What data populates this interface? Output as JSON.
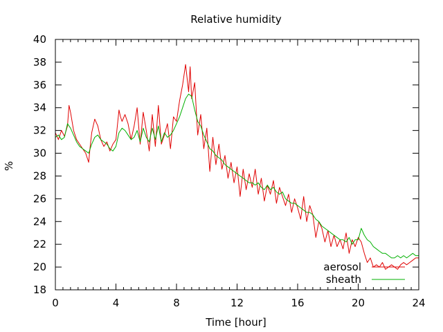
{
  "chart_data": {
    "type": "line",
    "title": "Relative humidity",
    "xlabel": "Time [hour]",
    "ylabel": "%",
    "xlim": [
      0,
      24
    ],
    "ylim": [
      18,
      40
    ],
    "xticks": [
      0,
      4,
      8,
      12,
      16,
      20,
      24
    ],
    "yticks": [
      18,
      20,
      22,
      24,
      26,
      28,
      30,
      32,
      34,
      36,
      38,
      40
    ],
    "xticks_minor_step": 0.5,
    "legend_position": "bottom-right",
    "grid": false,
    "series": [
      {
        "name": "aerosol",
        "color": "#e00000",
        "x": [
          0,
          0.2,
          0.4,
          0.6,
          0.8,
          0.9,
          1.0,
          1.2,
          1.4,
          1.6,
          1.8,
          2.0,
          2.2,
          2.3,
          2.4,
          2.6,
          2.8,
          3.0,
          3.2,
          3.4,
          3.6,
          3.8,
          4.0,
          4.2,
          4.3,
          4.4,
          4.6,
          4.8,
          5.0,
          5.2,
          5.4,
          5.6,
          5.8,
          6.0,
          6.2,
          6.4,
          6.6,
          6.8,
          7.0,
          7.2,
          7.4,
          7.6,
          7.8,
          8.0,
          8.2,
          8.4,
          8.6,
          8.8,
          8.9,
          9.0,
          9.2,
          9.4,
          9.6,
          9.8,
          10.0,
          10.2,
          10.4,
          10.6,
          10.8,
          11.0,
          11.2,
          11.4,
          11.6,
          11.8,
          12.0,
          12.2,
          12.4,
          12.6,
          12.8,
          13.0,
          13.2,
          13.4,
          13.6,
          13.8,
          14.0,
          14.2,
          14.4,
          14.6,
          14.8,
          15.0,
          15.2,
          15.4,
          15.6,
          15.8,
          16.0,
          16.2,
          16.4,
          16.6,
          16.8,
          17.0,
          17.2,
          17.4,
          17.6,
          17.8,
          18.0,
          18.2,
          18.4,
          18.6,
          18.8,
          19.0,
          19.2,
          19.4,
          19.6,
          19.8,
          20.0,
          20.2,
          20.4,
          20.6,
          20.8,
          21.0,
          21.2,
          21.4,
          21.6,
          21.8,
          22.0,
          22.2,
          22.4,
          22.6,
          22.8,
          23.0,
          23.2,
          23.4,
          23.6,
          23.8,
          24.0
        ],
        "y": [
          31.8,
          31.2,
          32.0,
          31.5,
          32.4,
          34.2,
          33.6,
          32.0,
          31.2,
          30.8,
          30.4,
          30.0,
          29.2,
          30.6,
          31.8,
          33.0,
          32.4,
          31.2,
          30.6,
          31.0,
          30.2,
          30.8,
          31.2,
          33.8,
          33.2,
          32.8,
          33.4,
          32.6,
          31.2,
          32.4,
          34.0,
          30.8,
          33.6,
          32.0,
          30.2,
          33.4,
          30.6,
          34.2,
          30.8,
          31.6,
          32.6,
          30.4,
          33.2,
          32.8,
          34.6,
          36.0,
          37.8,
          35.4,
          37.6,
          34.8,
          36.2,
          31.6,
          33.4,
          30.4,
          32.2,
          28.4,
          31.4,
          29.0,
          30.8,
          28.6,
          29.8,
          27.8,
          29.2,
          27.4,
          28.8,
          26.2,
          28.6,
          26.8,
          28.2,
          27.0,
          28.6,
          26.4,
          27.8,
          25.8,
          27.2,
          26.4,
          27.6,
          25.6,
          27.0,
          26.2,
          25.4,
          26.4,
          24.8,
          26.0,
          25.2,
          24.2,
          26.2,
          24.0,
          25.4,
          24.6,
          22.6,
          24.0,
          23.4,
          22.2,
          23.2,
          21.8,
          22.8,
          21.8,
          22.4,
          21.6,
          23.0,
          21.2,
          22.4,
          21.8,
          22.6,
          22.2,
          21.2,
          20.4,
          20.8,
          20.0,
          20.2,
          20.0,
          20.4,
          19.8,
          20.0,
          20.2,
          20.0,
          19.8,
          20.2,
          20.4,
          20.2,
          20.4,
          20.6,
          20.8,
          20.8
        ]
      },
      {
        "name": "sheath",
        "color": "#00b000",
        "x": [
          0,
          0.2,
          0.4,
          0.6,
          0.8,
          1.0,
          1.2,
          1.4,
          1.6,
          1.8,
          2.0,
          2.2,
          2.4,
          2.6,
          2.8,
          3.0,
          3.2,
          3.4,
          3.6,
          3.8,
          4.0,
          4.2,
          4.4,
          4.6,
          4.8,
          5.0,
          5.2,
          5.4,
          5.6,
          5.8,
          6.0,
          6.2,
          6.4,
          6.6,
          6.8,
          7.0,
          7.2,
          7.4,
          7.6,
          7.8,
          8.0,
          8.2,
          8.4,
          8.6,
          8.8,
          9.0,
          9.2,
          9.4,
          9.6,
          9.8,
          10.0,
          10.2,
          10.4,
          10.6,
          10.8,
          11.0,
          11.2,
          11.4,
          11.6,
          11.8,
          12.0,
          12.2,
          12.4,
          12.6,
          12.8,
          13.0,
          13.2,
          13.4,
          13.6,
          13.8,
          14.0,
          14.2,
          14.4,
          14.6,
          14.8,
          15.0,
          15.2,
          15.4,
          15.6,
          15.8,
          16.0,
          16.2,
          16.4,
          16.6,
          16.8,
          17.0,
          17.2,
          17.4,
          17.6,
          17.8,
          18.0,
          18.2,
          18.4,
          18.6,
          18.8,
          19.0,
          19.2,
          19.4,
          19.6,
          19.8,
          20.0,
          20.2,
          20.4,
          20.6,
          20.8,
          21.0,
          21.2,
          21.4,
          21.6,
          21.8,
          22.0,
          22.2,
          22.4,
          22.6,
          22.8,
          23.0,
          23.2,
          23.4,
          23.6,
          23.8,
          24.0
        ],
        "y": [
          31.4,
          31.6,
          31.2,
          31.4,
          32.6,
          32.2,
          31.6,
          31.0,
          30.6,
          30.4,
          30.2,
          30.0,
          30.8,
          31.4,
          31.6,
          31.2,
          31.0,
          30.8,
          30.4,
          30.2,
          30.6,
          31.8,
          32.2,
          32.0,
          31.6,
          31.2,
          31.4,
          32.0,
          31.0,
          32.2,
          31.4,
          31.0,
          32.2,
          31.2,
          32.4,
          31.0,
          31.8,
          31.4,
          31.6,
          32.0,
          32.6,
          33.2,
          34.0,
          34.8,
          35.2,
          35.0,
          33.8,
          32.8,
          32.4,
          31.6,
          31.0,
          30.4,
          30.2,
          29.8,
          29.6,
          29.4,
          29.0,
          28.8,
          28.6,
          28.4,
          28.2,
          28.0,
          27.8,
          27.6,
          27.4,
          27.4,
          27.2,
          27.4,
          27.0,
          26.8,
          27.2,
          26.8,
          27.0,
          26.6,
          26.4,
          26.6,
          26.0,
          25.8,
          25.6,
          25.6,
          25.4,
          25.2,
          25.0,
          24.8,
          24.8,
          24.6,
          24.2,
          24.0,
          23.6,
          23.4,
          23.2,
          23.0,
          22.8,
          22.6,
          22.4,
          22.4,
          22.2,
          22.6,
          22.0,
          22.4,
          22.4,
          23.4,
          22.8,
          22.4,
          22.2,
          21.8,
          21.6,
          21.4,
          21.2,
          21.2,
          21.0,
          20.8,
          20.8,
          21.0,
          20.8,
          21.0,
          20.8,
          21.0,
          21.2,
          21.0,
          21.0
        ]
      }
    ]
  }
}
